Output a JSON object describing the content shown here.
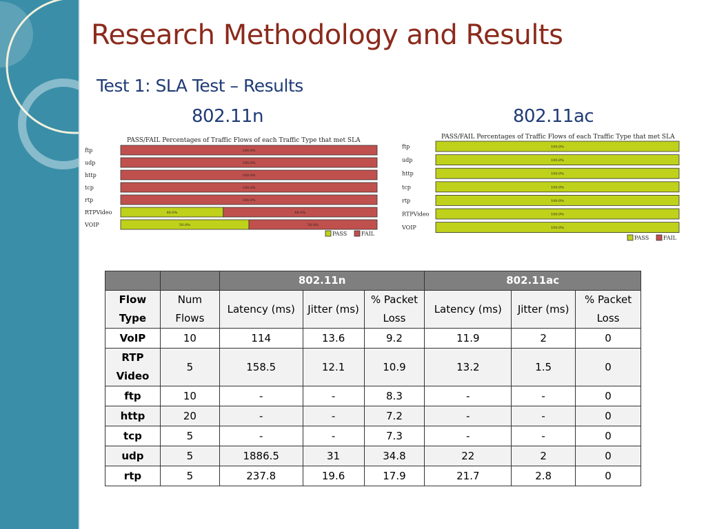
{
  "slide": {
    "title": "Research Methodology and Results",
    "subtitle": "Test 1: SLA Test – Results"
  },
  "charts": {
    "n_heading": "802.11n",
    "ac_heading": "802.11ac"
  },
  "chart_data": [
    {
      "type": "bar",
      "orientation": "horizontal",
      "stacked": true,
      "title": "PASS/FAIL Percentages of Traffic Flows of each Traffic Type that met SLA",
      "categories": [
        "ftp",
        "udp",
        "http",
        "tcp",
        "rtp",
        "RTPVideo",
        "VOIP"
      ],
      "series": [
        {
          "name": "PASS",
          "values": [
            0,
            0,
            0,
            0,
            0,
            40,
            50
          ],
          "labels": [
            "",
            "",
            "",
            "",
            "",
            "40.0%",
            "50.0%"
          ]
        },
        {
          "name": "FAIL",
          "values": [
            100,
            100,
            100,
            100,
            100,
            60,
            50
          ],
          "labels": [
            "100.0%",
            "100.0%",
            "100.0%",
            "100.0%",
            "100.0%",
            "60.0%",
            "50.0%"
          ]
        }
      ],
      "xlim": [
        0,
        100
      ],
      "legend": "bottom-right",
      "grid": false
    },
    {
      "type": "bar",
      "orientation": "horizontal",
      "stacked": true,
      "title": "PASS/FAIL Percentages of Traffic Flows of each Traffic Type that met SLA",
      "categories": [
        "ftp",
        "udp",
        "http",
        "tcp",
        "rtp",
        "RTPVideo",
        "VOIP"
      ],
      "series": [
        {
          "name": "PASS",
          "values": [
            100,
            100,
            100,
            100,
            100,
            100,
            100
          ],
          "labels": [
            "100.0%",
            "100.0%",
            "100.0%",
            "100.0%",
            "100.0%",
            "100.0%",
            "100.0%"
          ]
        },
        {
          "name": "FAIL",
          "values": [
            0,
            0,
            0,
            0,
            0,
            0,
            0
          ],
          "labels": [
            "",
            "",
            "",
            "",
            "",
            "",
            ""
          ]
        }
      ],
      "xlim": [
        0,
        100
      ],
      "legend": "bottom-right",
      "grid": false
    }
  ],
  "colors": {
    "pass": "#bfd11a",
    "fail": "#c0504d",
    "title": "#8b2a1c",
    "text": "#1f3b75",
    "sidebar": "#3a8ea8"
  },
  "table": {
    "group_headers": [
      "802.11n",
      "802.11ac"
    ],
    "columns": [
      "Flow Type",
      "Num Flows",
      "Latency (ms)",
      "Jitter (ms)",
      "% Packet Loss",
      "Latency (ms)",
      "Jitter (ms)",
      "% Packet Loss"
    ],
    "rows": [
      [
        "VoIP",
        "10",
        "114",
        "13.6",
        "9.2",
        "11.9",
        "2",
        "0"
      ],
      [
        "RTP Video",
        "5",
        "158.5",
        "12.1",
        "10.9",
        "13.2",
        "1.5",
        "0"
      ],
      [
        "ftp",
        "10",
        "-",
        "-",
        "8.3",
        "-",
        "-",
        "0"
      ],
      [
        "http",
        "20",
        "-",
        "-",
        "7.2",
        "-",
        "-",
        "0"
      ],
      [
        "tcp",
        "5",
        "-",
        "-",
        "7.3",
        "-",
        "-",
        "0"
      ],
      [
        "udp",
        "5",
        "1886.5",
        "31",
        "34.8",
        "22",
        "2",
        "0"
      ],
      [
        "rtp",
        "5",
        "237.8",
        "19.6",
        "17.9",
        "21.7",
        "2.8",
        "0"
      ]
    ]
  }
}
